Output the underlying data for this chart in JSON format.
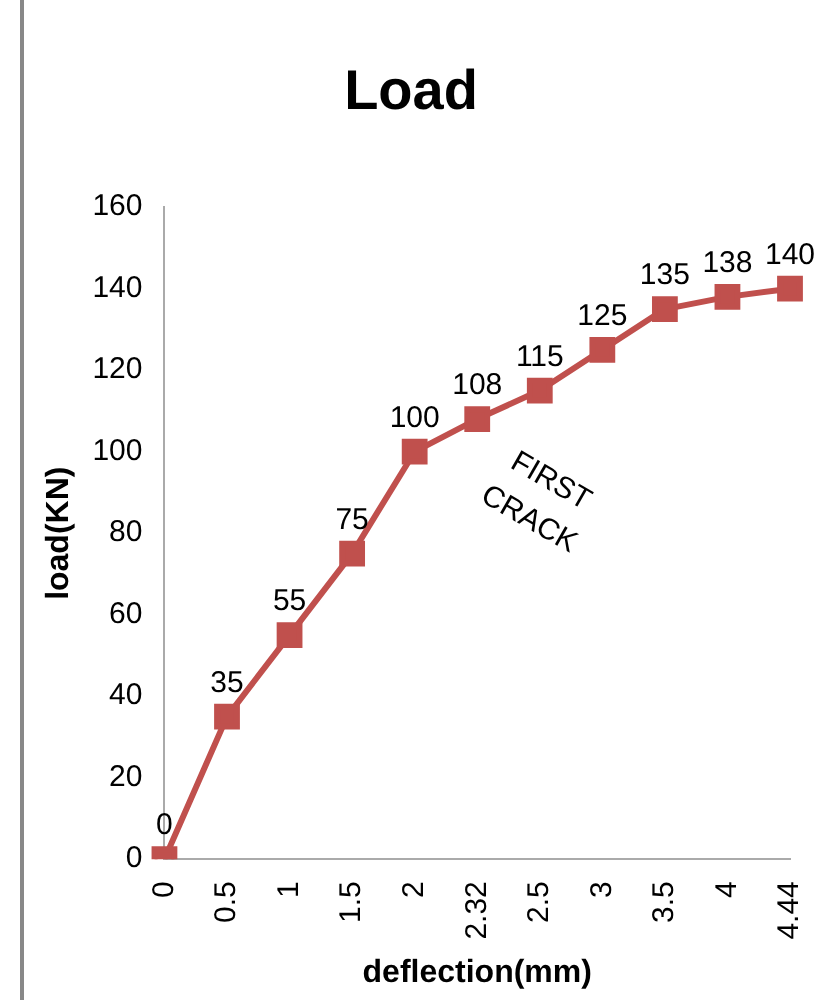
{
  "chart_data": {
    "type": "line",
    "title": "Load",
    "xlabel": "deflection(mm)",
    "ylabel": "load(KN)",
    "categories": [
      "0",
      "0.5",
      "1",
      "1.5",
      "2",
      "2.32",
      "2.5",
      "3",
      "3.5",
      "4",
      "4.44"
    ],
    "series": [
      {
        "color": "#c0504d",
        "values": [
          0,
          35,
          55,
          75,
          100,
          108,
          115,
          125,
          135,
          138,
          140
        ]
      }
    ],
    "ylim": [
      0,
      160
    ],
    "yticks": [
      0,
      20,
      40,
      60,
      80,
      100,
      120,
      140,
      160
    ],
    "grid": false,
    "legend": false,
    "marker": "square",
    "line_style": "solid",
    "data_labels": true,
    "annotations": [
      "FIRST CRACK"
    ]
  }
}
